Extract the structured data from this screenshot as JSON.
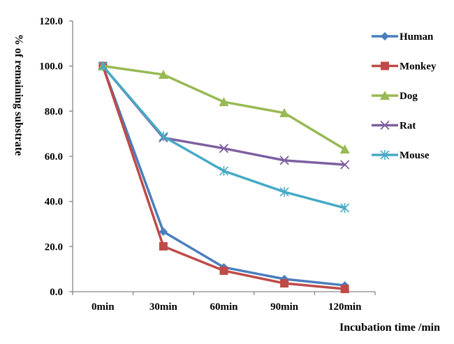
{
  "chart_data": {
    "type": "line",
    "title": "",
    "xlabel": "Incubation time /min",
    "ylabel": "% of remaining substrate",
    "categories": [
      "0min",
      "30min",
      "60min",
      "90min",
      "120min"
    ],
    "ylim": [
      0,
      120
    ],
    "yticks": [
      0,
      20,
      40,
      60,
      80,
      100,
      120
    ],
    "ytick_labels": [
      "0.0",
      "20.0",
      "40.0",
      "60.0",
      "80.0",
      "100.0",
      "120.0"
    ],
    "grid": false,
    "legend_position": "right",
    "series": [
      {
        "name": "Human",
        "color": "#4a7ebb",
        "marker": "diamond",
        "values": [
          100,
          26.6,
          10.8,
          5.6,
          2.8
        ]
      },
      {
        "name": "Monkey",
        "color": "#be4b48",
        "marker": "square",
        "values": [
          100,
          20.1,
          9.3,
          3.7,
          1.2
        ]
      },
      {
        "name": "Dog",
        "color": "#98b954",
        "marker": "triangle",
        "values": [
          100,
          96.2,
          84.1,
          79.2,
          63.1
        ]
      },
      {
        "name": "Rat",
        "color": "#7d60a0",
        "marker": "x",
        "values": [
          100,
          68.2,
          63.5,
          58.2,
          56.3
        ]
      },
      {
        "name": "Mouse",
        "color": "#46aac5",
        "marker": "star",
        "values": [
          100,
          68.8,
          53.5,
          44.2,
          37.1
        ]
      }
    ]
  }
}
